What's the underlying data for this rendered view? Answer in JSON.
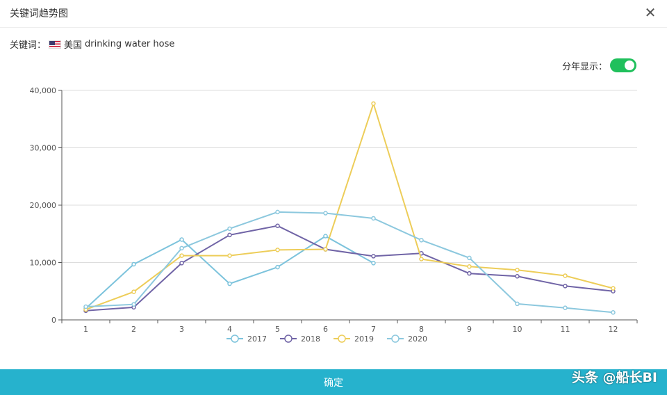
{
  "header": {
    "title": "关键词趋势图",
    "close_icon": "close-icon"
  },
  "keyword": {
    "label": "关键词：",
    "country_flag": "us-flag-icon",
    "country": "美国",
    "term": "drinking water hose"
  },
  "toggle": {
    "label": "分年显示：",
    "on": true,
    "color": "#20c05c"
  },
  "footer": {
    "confirm_label": "确定",
    "color": "#26b2cd"
  },
  "watermark": "头条 @船长BI",
  "chart_data": {
    "type": "line",
    "categories": [
      "1",
      "2",
      "3",
      "4",
      "5",
      "6",
      "7",
      "8",
      "9",
      "10",
      "11",
      "12"
    ],
    "ylim": [
      0,
      40000
    ],
    "yticks": [
      0,
      10000,
      20000,
      30000,
      40000
    ],
    "ytick_labels": [
      "0",
      "10,000",
      "20,000",
      "30,000",
      "40,000"
    ],
    "legend_position": "bottom",
    "series": [
      {
        "name": "2017",
        "color": "#7cc3dc",
        "values": [
          2000,
          9700,
          14000,
          6300,
          9200,
          14600,
          9900,
          null,
          null,
          null,
          null,
          null
        ]
      },
      {
        "name": "2018",
        "color": "#7064a6",
        "values": [
          1600,
          2200,
          9900,
          14800,
          16400,
          12300,
          11100,
          11600,
          8100,
          7600,
          5900,
          5000
        ]
      },
      {
        "name": "2019",
        "color": "#edcd59",
        "values": [
          1800,
          4900,
          11200,
          11200,
          12200,
          12300,
          37700,
          10600,
          9300,
          8700,
          7700,
          5500
        ]
      },
      {
        "name": "2020",
        "color": "#8cc8de",
        "values": [
          2300,
          2700,
          12500,
          15900,
          18800,
          18600,
          17700,
          13900,
          10800,
          2800,
          2100,
          1300
        ]
      }
    ]
  }
}
